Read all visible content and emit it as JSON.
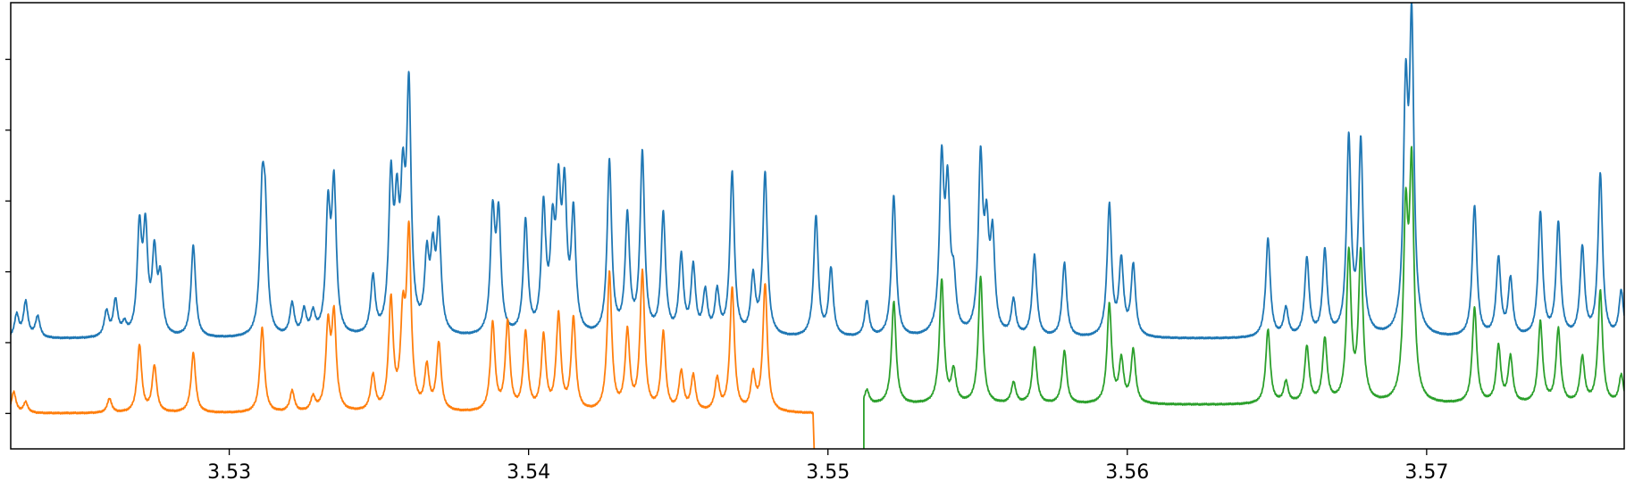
{
  "chart_data": {
    "type": "line",
    "title": "",
    "xlabel": "",
    "ylabel": "",
    "xlim": [
      3.5227,
      3.5766
    ],
    "ylim": [
      0,
      6.3
    ],
    "grid": false,
    "legend": "none",
    "x_ticks": [
      {
        "value": 3.53,
        "label": "3.53"
      },
      {
        "value": 3.54,
        "label": "3.54"
      },
      {
        "value": 3.55,
        "label": "3.55"
      },
      {
        "value": 3.56,
        "label": "3.56"
      },
      {
        "value": 3.57,
        "label": "3.57"
      }
    ],
    "y_ticks": [
      0.5,
      1.5,
      2.5,
      3.5,
      4.5,
      5.5
    ],
    "series": [
      {
        "color": "#1f77b4",
        "baseline": 1.55,
        "x_range": [
          3.5227,
          3.5766
        ],
        "peaks": [
          [
            3.5229,
            0.32
          ],
          [
            3.5232,
            0.5
          ],
          [
            3.5236,
            0.3
          ],
          [
            3.5259,
            0.35
          ],
          [
            3.5262,
            0.5
          ],
          [
            3.5265,
            0.15
          ],
          [
            3.527,
            1.45
          ],
          [
            3.5272,
            1.4
          ],
          [
            3.5275,
            1.1
          ],
          [
            3.5277,
            0.75
          ],
          [
            3.5288,
            1.3
          ],
          [
            3.5311,
            1.75
          ],
          [
            3.5312,
            1.45
          ],
          [
            3.5321,
            0.45
          ],
          [
            3.5325,
            0.35
          ],
          [
            3.5328,
            0.3
          ],
          [
            3.5333,
            1.7
          ],
          [
            3.5335,
            2.05
          ],
          [
            3.5348,
            0.8
          ],
          [
            3.5354,
            2.05
          ],
          [
            3.5356,
            1.5
          ],
          [
            3.5358,
            1.75
          ],
          [
            3.536,
            3.3
          ],
          [
            3.5366,
            1.0
          ],
          [
            3.5368,
            1.0
          ],
          [
            3.537,
            1.45
          ],
          [
            3.5388,
            1.65
          ],
          [
            3.539,
            1.6
          ],
          [
            3.5399,
            1.6
          ],
          [
            3.5405,
            1.75
          ],
          [
            3.5408,
            1.3
          ],
          [
            3.541,
            1.8
          ],
          [
            3.5412,
            1.85
          ],
          [
            3.5415,
            1.65
          ],
          [
            3.5427,
            2.45
          ],
          [
            3.5433,
            1.65
          ],
          [
            3.5438,
            2.55
          ],
          [
            3.5445,
            1.7
          ],
          [
            3.5451,
            1.1
          ],
          [
            3.5455,
            0.95
          ],
          [
            3.5459,
            0.6
          ],
          [
            3.5463,
            0.6
          ],
          [
            3.5468,
            2.3
          ],
          [
            3.5475,
            0.8
          ],
          [
            3.5479,
            2.3
          ],
          [
            3.5496,
            1.7
          ],
          [
            3.5501,
            0.95
          ],
          [
            3.5513,
            0.5
          ],
          [
            3.5522,
            2.0
          ],
          [
            3.5538,
            2.35
          ],
          [
            3.554,
            1.9
          ],
          [
            3.5542,
            0.65
          ],
          [
            3.5551,
            2.4
          ],
          [
            3.5553,
            1.3
          ],
          [
            3.5555,
            1.3
          ],
          [
            3.5562,
            0.5
          ],
          [
            3.5569,
            1.15
          ],
          [
            3.5579,
            1.05
          ],
          [
            3.5594,
            1.85
          ],
          [
            3.5598,
            1.05
          ],
          [
            3.5602,
            1.0
          ],
          [
            3.5647,
            1.4
          ],
          [
            3.5653,
            0.4
          ],
          [
            3.566,
            1.1
          ],
          [
            3.5666,
            1.2
          ],
          [
            3.5674,
            2.75
          ],
          [
            3.5678,
            2.7
          ],
          [
            3.5693,
            3.2
          ],
          [
            3.5695,
            4.2
          ],
          [
            3.5716,
            1.85
          ],
          [
            3.5724,
            1.1
          ],
          [
            3.5728,
            0.8
          ],
          [
            3.5738,
            1.75
          ],
          [
            3.5744,
            1.6
          ],
          [
            3.5752,
            1.25
          ],
          [
            3.5758,
            2.3
          ],
          [
            3.5765,
            0.65
          ]
        ]
      },
      {
        "color": "#ff7f0e",
        "baseline": 0.5,
        "x_range": [
          3.5227,
          3.5495
        ],
        "end_drop": [
          3.54955,
          -0.6
        ],
        "peaks": [
          [
            3.5228,
            0.3
          ],
          [
            3.5232,
            0.15
          ],
          [
            3.526,
            0.2
          ],
          [
            3.527,
            0.95
          ],
          [
            3.5275,
            0.65
          ],
          [
            3.5288,
            0.85
          ],
          [
            3.5311,
            1.2
          ],
          [
            3.5321,
            0.3
          ],
          [
            3.5328,
            0.2
          ],
          [
            3.5333,
            1.15
          ],
          [
            3.5335,
            1.3
          ],
          [
            3.5348,
            0.5
          ],
          [
            3.5354,
            1.55
          ],
          [
            3.5358,
            1.2
          ],
          [
            3.536,
            2.45
          ],
          [
            3.5366,
            0.6
          ],
          [
            3.537,
            0.95
          ],
          [
            3.5388,
            1.25
          ],
          [
            3.5393,
            1.25
          ],
          [
            3.5399,
            1.1
          ],
          [
            3.5405,
            1.05
          ],
          [
            3.541,
            1.35
          ],
          [
            3.5415,
            1.3
          ],
          [
            3.5427,
            1.95
          ],
          [
            3.5433,
            1.1
          ],
          [
            3.5438,
            1.95
          ],
          [
            3.5445,
            1.1
          ],
          [
            3.5451,
            0.55
          ],
          [
            3.5455,
            0.5
          ],
          [
            3.5463,
            0.45
          ],
          [
            3.5468,
            1.75
          ],
          [
            3.5475,
            0.5
          ],
          [
            3.5479,
            1.8
          ]
        ]
      },
      {
        "color": "#2ca02c",
        "baseline": 0.62,
        "x_range": [
          3.5512,
          3.5766
        ],
        "start_rise": [
          3.5512,
          -0.5
        ],
        "peaks": [
          [
            3.5513,
            0.2
          ],
          [
            3.5522,
            1.45
          ],
          [
            3.5538,
            1.75
          ],
          [
            3.5542,
            0.45
          ],
          [
            3.5551,
            1.8
          ],
          [
            3.5562,
            0.3
          ],
          [
            3.5569,
            0.8
          ],
          [
            3.5579,
            0.75
          ],
          [
            3.5594,
            1.4
          ],
          [
            3.5598,
            0.6
          ],
          [
            3.5602,
            0.75
          ],
          [
            3.5647,
            1.05
          ],
          [
            3.5653,
            0.3
          ],
          [
            3.566,
            0.8
          ],
          [
            3.5666,
            0.9
          ],
          [
            3.5674,
            2.1
          ],
          [
            3.5678,
            2.1
          ],
          [
            3.5693,
            2.5
          ],
          [
            3.5695,
            3.2
          ],
          [
            3.5716,
            1.35
          ],
          [
            3.5724,
            0.8
          ],
          [
            3.5728,
            0.65
          ],
          [
            3.5738,
            1.15
          ],
          [
            3.5744,
            1.05
          ],
          [
            3.5752,
            0.65
          ],
          [
            3.5758,
            1.6
          ],
          [
            3.5765,
            0.4
          ]
        ]
      }
    ]
  }
}
